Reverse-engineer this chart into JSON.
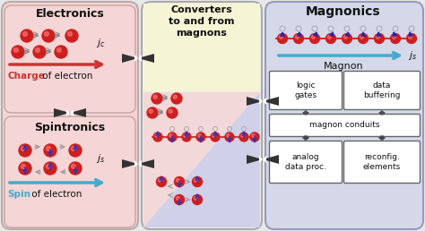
{
  "bg_color": "#e8e8e8",
  "left_panel_color": "#f5d5d5",
  "middle_panel_border": "#aaaaaa",
  "middle_top_color": "#f5f5d8",
  "middle_diag_pink": "#f0d8d8",
  "middle_diag_blue": "#d8d8ee",
  "right_panel_color": "#d5d8e8",
  "right_panel_border": "#9999bb",
  "white_box": "#ffffff",
  "electronics_title": "Electronics",
  "spintronics_title": "Spintronics",
  "converters_title": "Converters\nto and from\nmagnons",
  "magnonics_title": "Magnonics",
  "charge_bold": "Charge",
  "charge_rest": " of electron",
  "spin_bold": "Spin",
  "spin_rest": " of electron",
  "magnon_label": "Magnon",
  "jc_label": "$j_c$",
  "js_label": "$j_s$",
  "box_labels": [
    "logic\ngates",
    "data\nbuffering",
    "magnon conduits",
    "analog\ndata proc.",
    "reconfig.\nelements"
  ]
}
